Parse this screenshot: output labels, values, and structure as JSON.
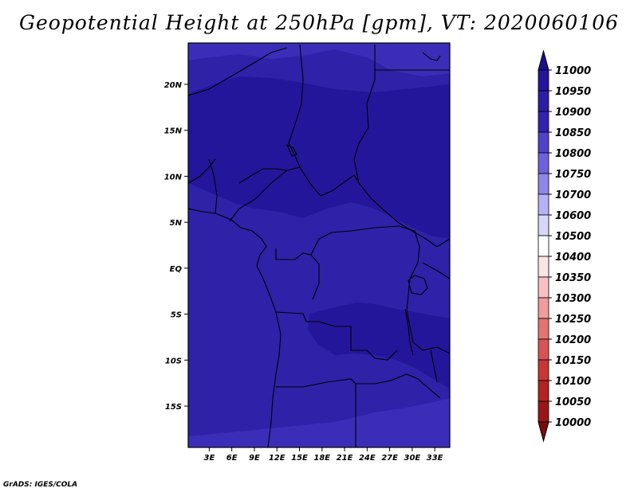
{
  "title": "Geopotential Height at 250hPa [gpm], VT: 2020060106",
  "credit": "GrADS: IGES/COLA",
  "map": {
    "lat_ticks": [
      "20N",
      "15N",
      "10N",
      "5N",
      "EQ",
      "5S",
      "10S",
      "15S"
    ],
    "lon_ticks": [
      "3E",
      "6E",
      "9E",
      "12E",
      "15E",
      "18E",
      "21E",
      "24E",
      "27E",
      "30E",
      "33E"
    ],
    "lat_range": [
      -19.5,
      24.5
    ],
    "lon_range": [
      0.2,
      35
    ]
  },
  "colorbar": {
    "levels": [
      "11000",
      "10950",
      "10900",
      "10850",
      "10800",
      "10750",
      "10700",
      "10600",
      "10500",
      "10400",
      "10350",
      "10300",
      "10250",
      "10200",
      "10150",
      "10100",
      "10050",
      "10000"
    ],
    "colors": [
      "#1c0e8c",
      "#24159a",
      "#2b1ea6",
      "#3322b0",
      "#4f44c8",
      "#6d62dc",
      "#8e86ea",
      "#b7b2f5",
      "#d8d6fb",
      "#ffffff",
      "#fde4e4",
      "#f8c0c0",
      "#f09c9c",
      "#e47474",
      "#d85454",
      "#c83636",
      "#b42222",
      "#9a1616",
      "#7c0c0c"
    ]
  }
}
